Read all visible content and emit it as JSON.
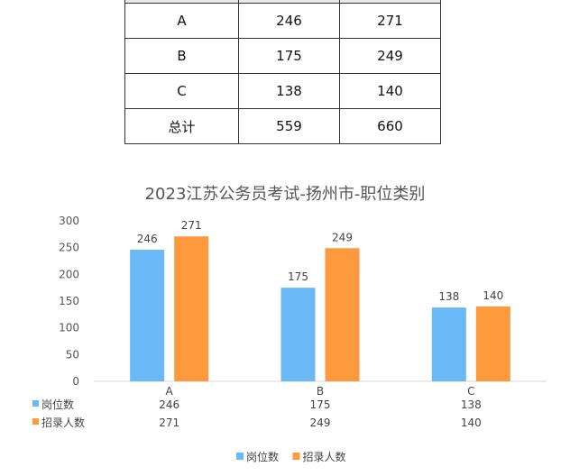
{
  "table": {
    "rows": [
      {
        "category": "A",
        "positions": "246",
        "recruits": "271"
      },
      {
        "category": "B",
        "positions": "175",
        "recruits": "249"
      },
      {
        "category": "C",
        "positions": "138",
        "recruits": "140"
      },
      {
        "category": "总计",
        "positions": "559",
        "recruits": "660"
      }
    ]
  },
  "chart_data": {
    "type": "bar",
    "title": "2023江苏公务员考试-扬州市-职位类别",
    "categories": [
      "A",
      "B",
      "C"
    ],
    "series": [
      {
        "name": "岗位数",
        "values": [
          246,
          175,
          138
        ],
        "color": "#6bb8f7"
      },
      {
        "name": "招录人数",
        "values": [
          271,
          249,
          140
        ],
        "color": "#fd9a3d"
      }
    ],
    "ylim": [
      0,
      300
    ],
    "yticks": [
      "0",
      "50",
      "100",
      "150",
      "200",
      "250",
      "300"
    ],
    "grid": false,
    "legend": "bottom-center",
    "data_table": true
  }
}
